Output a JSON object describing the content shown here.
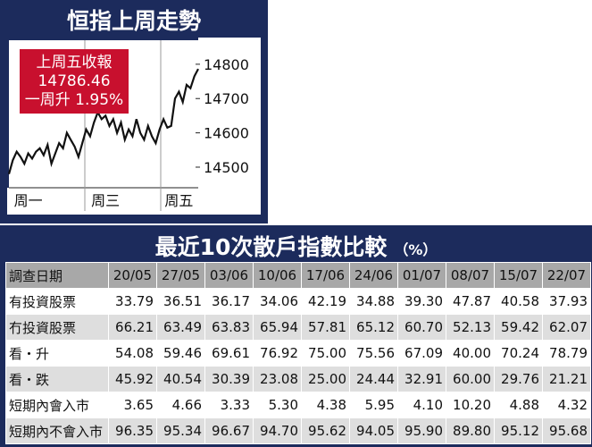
{
  "chart_data": {
    "type": "line",
    "title": "恒指上周走勢",
    "annotation": [
      "上周五收報",
      "14786.46",
      "一周升 1.95%"
    ],
    "categories": [
      null,
      null,
      null,
      null,
      null,
      "周一",
      null,
      null,
      null,
      null,
      null,
      null,
      null,
      null,
      null,
      null,
      null,
      null,
      null,
      null,
      null,
      null,
      null,
      null,
      null,
      "周三",
      null,
      null,
      null,
      null,
      null,
      null,
      null,
      null,
      null,
      null,
      null,
      null,
      null,
      null,
      null,
      null,
      null,
      null,
      "周五",
      null,
      null,
      null,
      null,
      null
    ],
    "values": [
      14480,
      14520,
      14545,
      14530,
      14510,
      14540,
      14525,
      14545,
      14555,
      14535,
      14565,
      14510,
      14540,
      14570,
      14555,
      14600,
      14580,
      14560,
      14530,
      14570,
      14610,
      14590,
      14630,
      14660,
      14640,
      14650,
      14620,
      14640,
      14600,
      14630,
      14580,
      14610,
      14590,
      14640,
      14600,
      14580,
      14620,
      14590,
      14570,
      14610,
      14640,
      14615,
      14620,
      14700,
      14720,
      14690,
      14740,
      14730,
      14765,
      14786.46
    ],
    "color": "#111111",
    "ylim": [
      14440,
      14870
    ],
    "yticks": [
      14500,
      14600,
      14700,
      14800
    ]
  },
  "table": {
    "title": "最近10次散戶指數比較",
    "unit": "（%）",
    "header": [
      "調查日期",
      "20/05",
      "27/05",
      "03/06",
      "10/06",
      "17/06",
      "24/06",
      "01/07",
      "08/07",
      "15/07",
      "22/07"
    ],
    "rows": [
      [
        "有投資股票",
        "33.79",
        "36.51",
        "36.17",
        "34.06",
        "42.19",
        "34.88",
        "39.30",
        "47.87",
        "40.58",
        "37.93"
      ],
      [
        "冇投資股票",
        "66.21",
        "63.49",
        "63.83",
        "65.94",
        "57.81",
        "65.12",
        "60.70",
        "52.13",
        "59.42",
        "62.07"
      ],
      [
        "看・升",
        "54.08",
        "59.46",
        "69.61",
        "76.92",
        "75.00",
        "75.56",
        "67.09",
        "40.00",
        "70.24",
        "78.79"
      ],
      [
        "看・跌",
        "45.92",
        "40.54",
        "30.39",
        "23.08",
        "25.00",
        "24.44",
        "32.91",
        "60.00",
        "29.76",
        "21.21"
      ],
      [
        "短期內會入市",
        "3.65",
        "4.66",
        "3.33",
        "5.30",
        "4.38",
        "5.95",
        "4.10",
        "10.20",
        "4.88",
        "4.32"
      ],
      [
        "短期內不會入市",
        "96.35",
        "95.34",
        "96.67",
        "94.70",
        "95.62",
        "94.05",
        "95.90",
        "89.80",
        "95.12",
        "95.68"
      ]
    ]
  }
}
